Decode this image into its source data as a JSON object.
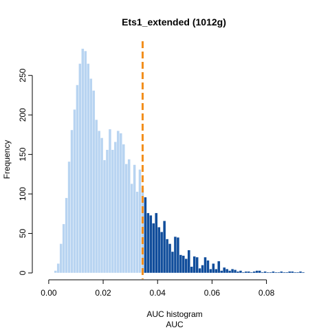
{
  "chart_data": {
    "type": "bar",
    "title": "Ets1_extended (1012g)",
    "xlabel": "AUC histogram",
    "xlabel2": "AUC",
    "ylabel": "Frequency",
    "xlim": [
      -0.003,
      0.094
    ],
    "ylim": [
      0,
      295
    ],
    "x_ticks": [
      "0.00",
      "0.02",
      "0.04",
      "0.06",
      "0.08"
    ],
    "x_tick_values": [
      0,
      0.02,
      0.04,
      0.06,
      0.08
    ],
    "y_ticks": [
      "0",
      "50",
      "100",
      "150",
      "200",
      "250"
    ],
    "y_tick_values": [
      0,
      50,
      100,
      150,
      200,
      250
    ],
    "bin_width": 0.001,
    "bin_start": 0.002,
    "threshold": 0.0345,
    "colors": {
      "below": "#b8d4f1",
      "above": "#104d9b",
      "threshold_line": "#f28e1c"
    },
    "values": [
      3,
      12,
      37,
      62,
      95,
      141,
      181,
      207,
      238,
      265,
      284,
      281,
      265,
      246,
      231,
      194,
      180,
      171,
      143,
      156,
      182,
      156,
      166,
      180,
      177,
      163,
      138,
      144,
      113,
      137,
      103,
      131,
      108,
      96,
      76,
      73,
      63,
      76,
      58,
      52,
      66,
      43,
      37,
      27,
      46,
      45,
      23,
      22,
      18,
      29,
      8,
      21,
      20,
      6,
      10,
      20,
      16,
      5,
      12,
      5,
      15,
      3,
      7,
      5,
      3,
      5,
      4,
      2,
      3,
      1,
      2,
      2,
      1,
      2,
      3,
      3,
      1,
      2,
      1,
      1,
      2,
      1,
      1,
      2,
      1,
      1,
      2,
      2,
      1,
      1,
      2,
      1
    ]
  }
}
